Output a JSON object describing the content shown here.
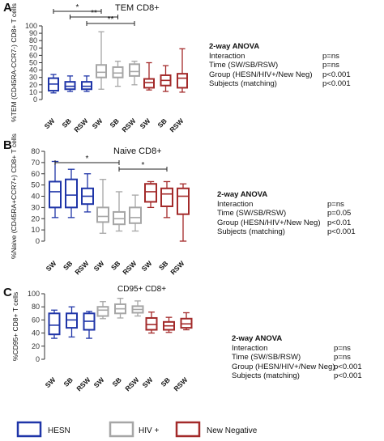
{
  "chart_data": [
    {
      "type": "boxplot",
      "panel": "A",
      "title": "TEM CD8+",
      "ylabel": "%TEM (CD45RA-CCR7-) CD8+ T cells",
      "ylim": [
        0,
        100
      ],
      "yticks": [
        0,
        10,
        20,
        30,
        40,
        50,
        60,
        70,
        80,
        90,
        100
      ],
      "categories": [
        "SW",
        "SB",
        "RSW"
      ],
      "series": [
        {
          "name": "HESN",
          "color": "#1f35a8",
          "boxes": [
            {
              "min": 9,
              "q1": 12,
              "median": 21,
              "q3": 29,
              "max": 34
            },
            {
              "min": 11,
              "q1": 14,
              "median": 18,
              "q3": 24,
              "max": 32
            },
            {
              "min": 11,
              "q1": 14,
              "median": 18,
              "q3": 24,
              "max": 32
            }
          ]
        },
        {
          "name": "HIV +",
          "color": "#a6a6a6",
          "boxes": [
            {
              "min": 14,
              "q1": 30,
              "median": 37,
              "q3": 47,
              "max": 92
            },
            {
              "min": 18,
              "q1": 30,
              "median": 36,
              "q3": 44,
              "max": 52
            },
            {
              "min": 20,
              "q1": 32,
              "median": 38,
              "q3": 48,
              "max": 52
            }
          ]
        },
        {
          "name": "New Negative",
          "color": "#a32a2a",
          "boxes": [
            {
              "min": 13,
              "q1": 16,
              "median": 23,
              "q3": 28,
              "max": 50
            },
            {
              "min": 11,
              "q1": 19,
              "median": 26,
              "q3": 33,
              "max": 46
            },
            {
              "min": 10,
              "q1": 16,
              "median": 29,
              "q3": 35,
              "max": 69
            }
          ]
        }
      ],
      "significance": [
        {
          "label": "*",
          "from": 0,
          "to": 3
        },
        {
          "label": "**",
          "from": 1,
          "to": 4
        },
        {
          "label": "**",
          "from": 2,
          "to": 5
        }
      ],
      "anova": {
        "title": "2-way ANOVA",
        "rows": [
          {
            "label": "Interaction",
            "value": "p=ns"
          },
          {
            "label": "Time (SW/SB/RSW)",
            "value": "p=ns"
          },
          {
            "label": "Group (HESN/HIV+/New Neg)",
            "value": "p<0.001"
          },
          {
            "label": "Subjects (matching)",
            "value": "p<0.001"
          }
        ]
      }
    },
    {
      "type": "boxplot",
      "panel": "B",
      "title": "Naive CD8+",
      "ylabel": "%Naive (CD45RA+CCR7+) CD8+ T cells",
      "ylim": [
        0,
        80
      ],
      "yticks": [
        0,
        10,
        20,
        30,
        40,
        50,
        60,
        70,
        80
      ],
      "categories": [
        "SW",
        "SB",
        "RSW"
      ],
      "series": [
        {
          "name": "HESN",
          "color": "#1f35a8",
          "boxes": [
            {
              "min": 21,
              "q1": 30,
              "median": 44,
              "q3": 53,
              "max": 71
            },
            {
              "min": 21,
              "q1": 30,
              "median": 41,
              "q3": 55,
              "max": 64
            },
            {
              "min": 26,
              "q1": 33,
              "median": 40,
              "q3": 47,
              "max": 60
            }
          ]
        },
        {
          "name": "HIV +",
          "color": "#a6a6a6",
          "boxes": [
            {
              "min": 7,
              "q1": 17,
              "median": 22,
              "q3": 30,
              "max": 55
            },
            {
              "min": 9,
              "q1": 15,
              "median": 20,
              "q3": 26,
              "max": 44
            },
            {
              "min": 9,
              "q1": 16,
              "median": 21,
              "q3": 30,
              "max": 41
            }
          ]
        },
        {
          "name": "New Negative",
          "color": "#a32a2a",
          "boxes": [
            {
              "min": 30,
              "q1": 35,
              "median": 44,
              "q3": 51,
              "max": 53
            },
            {
              "min": 21,
              "q1": 31,
              "median": 42,
              "q3": 47,
              "max": 53
            },
            {
              "min": 0,
              "q1": 24,
              "median": 40,
              "q3": 47,
              "max": 51
            }
          ]
        }
      ],
      "significance": [
        {
          "label": "*",
          "from": 0,
          "to": 4
        },
        {
          "label": "*",
          "from": 4,
          "to": 7
        }
      ],
      "anova": {
        "title": "2-way ANOVA",
        "rows": [
          {
            "label": "Interaction",
            "value": "p=ns"
          },
          {
            "label": "Time (SW/SB/RSW)",
            "value": "p=0.05"
          },
          {
            "label": "Group (HESN/HIV+/New Neg)",
            "value": "p<0.01"
          },
          {
            "label": "Subjects (matching)",
            "value": "p<0.001"
          }
        ]
      }
    },
    {
      "type": "boxplot",
      "panel": "C",
      "title": "CD95+ CD8+",
      "ylabel": "%CD95+ CD8+ T cells",
      "ylim": [
        0,
        100
      ],
      "yticks": [
        0,
        20,
        40,
        60,
        80,
        100
      ],
      "categories": [
        "SW",
        "SB",
        "RSW"
      ],
      "series": [
        {
          "name": "HESN",
          "color": "#1f35a8",
          "boxes": [
            {
              "min": 32,
              "q1": 38,
              "median": 52,
              "q3": 70,
              "max": 75
            },
            {
              "min": 34,
              "q1": 48,
              "median": 60,
              "q3": 70,
              "max": 80
            },
            {
              "min": 32,
              "q1": 45,
              "median": 58,
              "q3": 70,
              "max": 73
            }
          ]
        },
        {
          "name": "HIV +",
          "color": "#a6a6a6",
          "boxes": [
            {
              "min": 62,
              "q1": 66,
              "median": 75,
              "q3": 80,
              "max": 88
            },
            {
              "min": 63,
              "q1": 70,
              "median": 77,
              "q3": 84,
              "max": 93
            },
            {
              "min": 66,
              "q1": 71,
              "median": 76,
              "q3": 81,
              "max": 89
            }
          ]
        },
        {
          "name": "New Negative",
          "color": "#a32a2a",
          "boxes": [
            {
              "min": 40,
              "q1": 45,
              "median": 53,
              "q3": 63,
              "max": 72
            },
            {
              "min": 41,
              "q1": 45,
              "median": 51,
              "q3": 57,
              "max": 64
            },
            {
              "min": 45,
              "q1": 48,
              "median": 54,
              "q3": 62,
              "max": 71
            }
          ]
        }
      ],
      "significance": [],
      "anova": {
        "title": "2-way ANOVA",
        "rows": [
          {
            "label": "Interaction",
            "value": "p=ns"
          },
          {
            "label": "Time (SW/SB/RSW)",
            "value": "p=ns"
          },
          {
            "label": "Group (HESN/HIV+/New Neg)",
            "value": "p<0.001"
          },
          {
            "label": "Subjects (matching)",
            "value": "p<0.001"
          }
        ]
      }
    }
  ],
  "legend": [
    {
      "label": "HESN",
      "color": "#1f35a8"
    },
    {
      "label": "HIV +",
      "color": "#a6a6a6"
    },
    {
      "label": "New Negative",
      "color": "#a32a2a"
    }
  ]
}
